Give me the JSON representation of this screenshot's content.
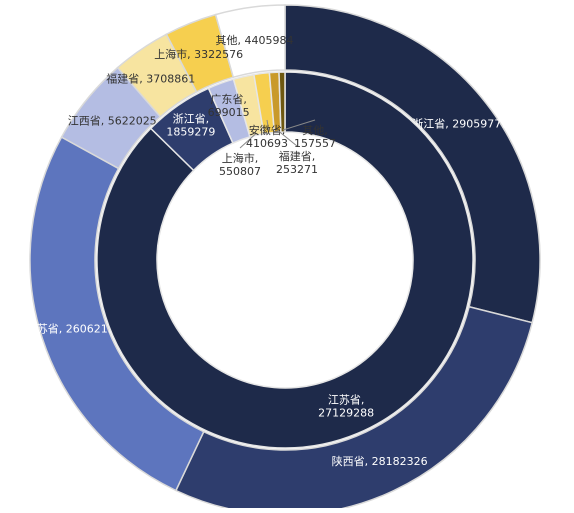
{
  "chart_data": [
    {
      "type": "pie",
      "variant": "donut-outer-ring",
      "labels": [
        "浙江省",
        "陕西省",
        "江苏省",
        "江西省",
        "福建省",
        "上海市",
        "其他"
      ],
      "label_texts": [
        "浙江省, 29059771",
        "陕西省, 28182326",
        "江苏省, 26062111",
        "江西省, 5622025",
        "福建省, 3708861",
        "上海市, 3322576",
        "其他, 4405984"
      ],
      "values": [
        29059771,
        28182326,
        26062111,
        5622025,
        3708861,
        3322576,
        4405984
      ],
      "colors": [
        "#1e2a4a",
        "#2e3d6d",
        "#5d75be",
        "#b4bde3",
        "#f7e4a0",
        "#f6cf4f",
        "#ffffff"
      ]
    },
    {
      "type": "pie",
      "variant": "donut-inner-ring",
      "labels": [
        "江苏省",
        "浙江省",
        "广东省",
        "上海市",
        "安徽省",
        "福建省",
        "其他"
      ],
      "label_texts": [
        "江苏省,\n27129288",
        "浙江省,\n1859279",
        "广东省,\n699015",
        "上海市,\n550807",
        "安徽省,\n410693",
        "福建省,\n253271",
        "其他,\n157557"
      ],
      "values": [
        27129288,
        1859279,
        699015,
        550807,
        410693,
        253271,
        157557
      ],
      "colors": [
        "#1e2a4a",
        "#2e3d6d",
        "#b4bde3",
        "#f7e4a0",
        "#f6cf4f",
        "#c99a2a",
        "#6e5810"
      ]
    }
  ]
}
